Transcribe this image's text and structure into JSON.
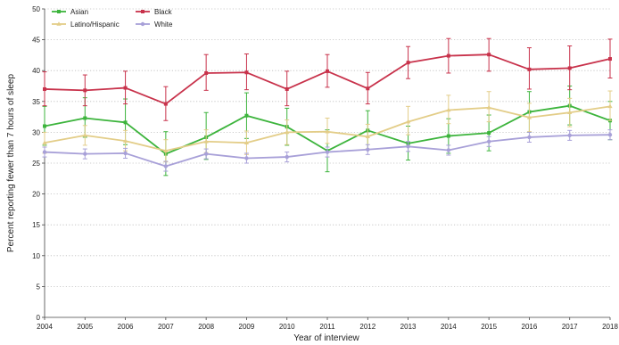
{
  "chart_data": {
    "type": "line",
    "xlabel": "Year of interview",
    "ylabel": "Percent reporting fewer than 7 hours of sleep",
    "ylim": [
      0,
      50
    ],
    "yticks": [
      0,
      5,
      10,
      15,
      20,
      25,
      30,
      35,
      40,
      45,
      50
    ],
    "grid": true,
    "legend_position": "top-left",
    "x": [
      2004,
      2005,
      2006,
      2007,
      2008,
      2009,
      2010,
      2011,
      2012,
      2013,
      2014,
      2015,
      2016,
      2017,
      2018
    ],
    "series": [
      {
        "name": "Asian",
        "color": "#3cb43c",
        "marker": "square",
        "values": [
          31.0,
          32.3,
          31.6,
          26.5,
          29.2,
          32.7,
          30.9,
          27.0,
          30.3,
          28.2,
          29.4,
          29.9,
          33.3,
          34.3,
          31.9
        ],
        "lower": [
          27.9,
          29.2,
          28.0,
          23.0,
          25.6,
          29.0,
          27.9,
          23.6,
          27.2,
          25.5,
          26.6,
          27.0,
          30.0,
          31.2,
          28.8
        ],
        "upper": [
          34.2,
          35.6,
          35.4,
          30.1,
          33.2,
          36.4,
          33.9,
          30.4,
          33.5,
          31.0,
          32.2,
          32.8,
          36.6,
          37.5,
          35.0
        ]
      },
      {
        "name": "Black",
        "color": "#c8324b",
        "marker": "square",
        "values": [
          37.0,
          36.8,
          37.2,
          34.6,
          39.6,
          39.7,
          37.0,
          39.9,
          37.1,
          41.3,
          42.4,
          42.6,
          40.2,
          40.4,
          41.9
        ],
        "lower": [
          34.3,
          34.3,
          34.6,
          31.9,
          36.8,
          36.9,
          34.3,
          37.3,
          34.6,
          38.7,
          39.6,
          39.9,
          37.0,
          36.9,
          38.8
        ],
        "upper": [
          39.8,
          39.3,
          39.9,
          37.4,
          42.6,
          42.7,
          39.9,
          42.6,
          39.7,
          43.9,
          45.2,
          45.2,
          43.7,
          44.0,
          45.1
        ]
      },
      {
        "name": "Latino/Hispanic",
        "color": "#e3cd88",
        "marker": "triangle",
        "values": [
          28.3,
          29.5,
          28.6,
          27.0,
          28.5,
          28.3,
          30.0,
          30.1,
          29.3,
          31.7,
          33.6,
          34.0,
          32.4,
          33.2,
          34.2
        ],
        "lower": [
          26.6,
          27.9,
          27.0,
          25.2,
          26.7,
          26.4,
          28.0,
          28.2,
          27.3,
          29.6,
          31.4,
          31.7,
          30.1,
          30.9,
          31.9
        ],
        "upper": [
          30.0,
          31.1,
          30.3,
          28.8,
          30.4,
          30.2,
          32.0,
          32.3,
          31.3,
          34.2,
          36.0,
          36.6,
          34.7,
          35.5,
          36.7
        ]
      },
      {
        "name": "White",
        "color": "#a8a0d8",
        "marker": "circle",
        "values": [
          26.8,
          26.5,
          26.6,
          24.5,
          26.5,
          25.8,
          26.0,
          26.8,
          27.2,
          27.7,
          27.1,
          28.5,
          29.2,
          29.5,
          29.6
        ],
        "lower": [
          26.0,
          25.7,
          25.8,
          23.7,
          25.7,
          25.0,
          25.2,
          26.0,
          26.4,
          26.9,
          26.3,
          27.7,
          28.4,
          28.7,
          28.8
        ],
        "upper": [
          27.6,
          27.3,
          27.4,
          25.3,
          27.3,
          26.6,
          26.8,
          27.6,
          28.0,
          28.5,
          27.9,
          29.3,
          30.0,
          30.3,
          30.4
        ]
      }
    ]
  }
}
